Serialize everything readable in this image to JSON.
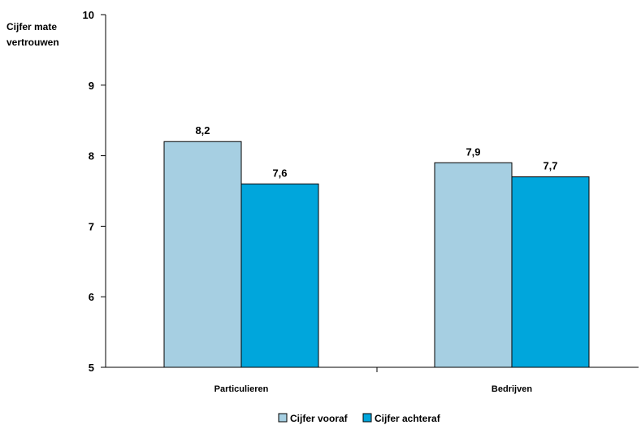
{
  "chart_data": {
    "type": "bar",
    "title": "",
    "ylabel": [
      "Cijfer mate",
      "vertrouwen"
    ],
    "xlabel": "",
    "categories": [
      "Particulieren",
      "Bedrijven"
    ],
    "ylim": [
      5,
      10
    ],
    "yticks": [
      "5",
      "6",
      "7",
      "8",
      "9",
      "10"
    ],
    "series": [
      {
        "name": "Cijfer vooraf",
        "values": [
          8.2,
          7.9
        ],
        "labels": [
          "8,2",
          "7,9"
        ],
        "color": "#a6cfe2"
      },
      {
        "name": "Cijfer achteraf",
        "values": [
          7.6,
          7.7
        ],
        "labels": [
          "7,6",
          "7,7"
        ],
        "color": "#00a6dc"
      }
    ],
    "grid": false,
    "legend": "bottom"
  }
}
